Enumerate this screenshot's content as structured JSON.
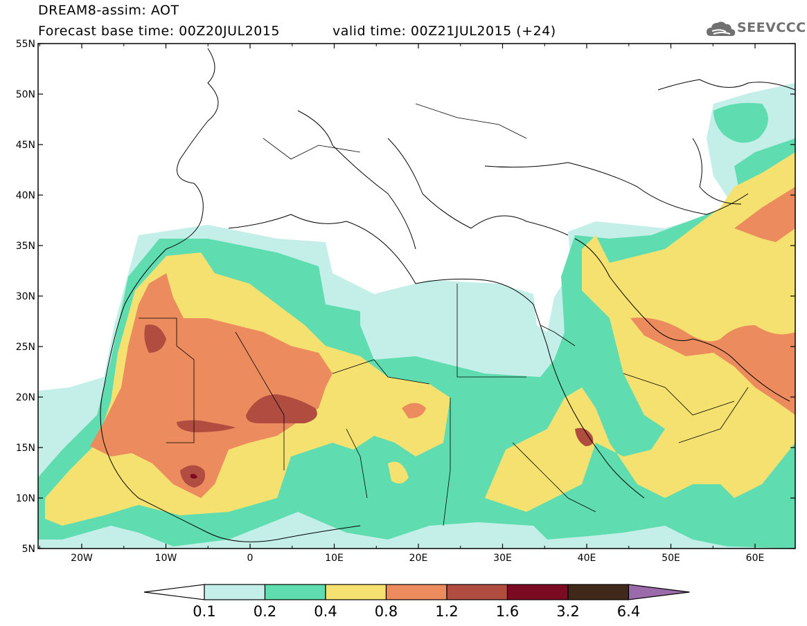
{
  "title": {
    "line1": "DREAM8-assim: AOT",
    "base_time": "Forecast base time: 00Z20JUL2015",
    "valid_time": "valid time: 00Z21JUL2015 (+24)"
  },
  "logo": {
    "text": "SEEVCCC",
    "icon": "cloud-icon"
  },
  "axes": {
    "lat_labels": [
      "55N",
      "50N",
      "45N",
      "40N",
      "35N",
      "30N",
      "25N",
      "20N",
      "15N",
      "10N",
      "5N"
    ],
    "lon_labels": [
      "20W",
      "10W",
      "0",
      "10E",
      "20E",
      "30E",
      "40E",
      "50E",
      "60E"
    ]
  },
  "colorbar": {
    "labels": [
      "0.1",
      "0.2",
      "0.4",
      "0.8",
      "1.2",
      "1.6",
      "3.2",
      "6.4"
    ],
    "colors": [
      "#c4efe8",
      "#5fddb0",
      "#f5e170",
      "#eb8b5e",
      "#b04d40",
      "#7a0b22",
      "#40281a",
      "#9a6aab"
    ]
  }
}
